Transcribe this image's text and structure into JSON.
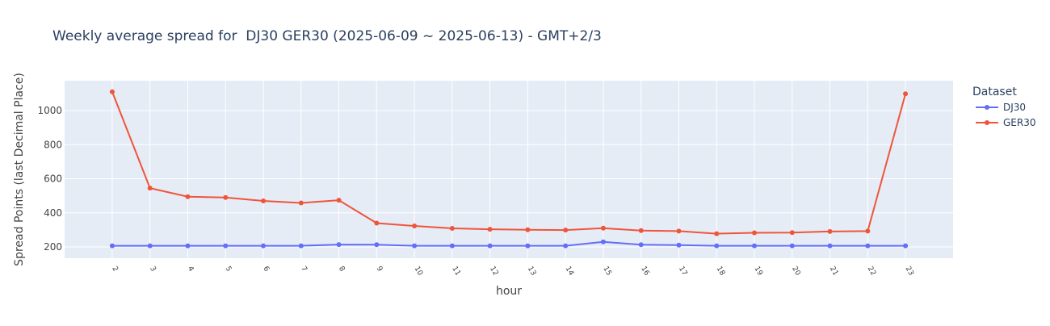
{
  "chart_data": {
    "type": "line",
    "title": "Weekly average spread for  DJ30 GER30 (2025-06-09 ~ 2025-06-13) - GMT+2/3",
    "x_label": "hour",
    "y_label": "Spread Points (last Decimal Place)",
    "legend_title": "Dataset",
    "x": [
      2,
      3,
      4,
      5,
      6,
      7,
      8,
      9,
      10,
      11,
      12,
      13,
      14,
      15,
      16,
      17,
      18,
      19,
      20,
      21,
      22,
      23
    ],
    "series": [
      {
        "name": "DJ30",
        "color": "#636efa",
        "values": [
          207,
          207,
          207,
          207,
          207,
          207,
          214,
          213,
          207,
          207,
          207,
          207,
          207,
          230,
          213,
          211,
          207,
          207,
          207,
          207,
          207,
          207
        ]
      },
      {
        "name": "GER30",
        "color": "#ef553b",
        "values": [
          1110,
          545,
          495,
          490,
          470,
          458,
          474,
          340,
          323,
          309,
          304,
          301,
          299,
          310,
          296,
          293,
          278,
          283,
          284,
          291,
          293,
          1098
        ]
      }
    ],
    "xlim": [
      0.74,
      24.26
    ],
    "xticks": [
      2,
      3,
      4,
      5,
      6,
      7,
      8,
      9,
      10,
      11,
      12,
      13,
      14,
      15,
      16,
      17,
      18,
      19,
      20,
      21,
      22,
      23
    ],
    "ylim": [
      134,
      1175
    ],
    "yticks": [
      200,
      400,
      600,
      800,
      1000
    ],
    "grid": true,
    "legend": "right"
  }
}
